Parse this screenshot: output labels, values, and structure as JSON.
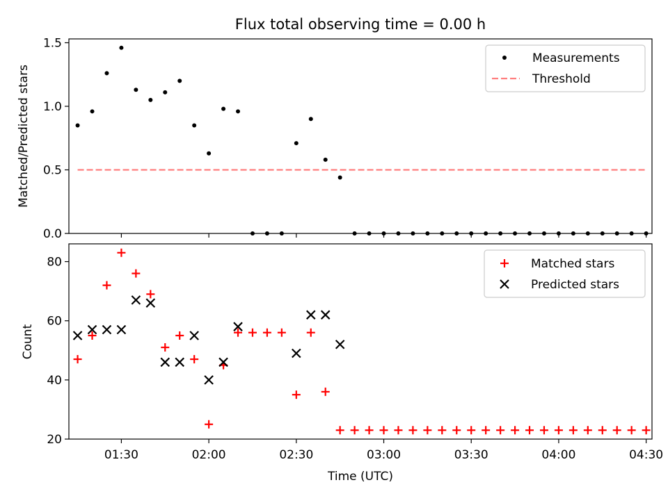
{
  "chart_data": [
    {
      "type": "scatter",
      "title": "Flux total observing time = 0.00 h",
      "xlabel": "",
      "ylabel": "Matched/Predicted stars",
      "xlim": [
        "01:12",
        "04:32"
      ],
      "ylim": [
        0,
        1.53
      ],
      "yticks": [
        "0.0",
        "0.5",
        "1.0",
        "1.5"
      ],
      "legend_position": "upper right",
      "series": [
        {
          "name": "Measurements",
          "marker": "dot",
          "color": "#000000",
          "x": [
            "01:15",
            "01:20",
            "01:25",
            "01:30",
            "01:35",
            "01:40",
            "01:45",
            "01:50",
            "01:55",
            "02:00",
            "02:05",
            "02:10",
            "02:15",
            "02:20",
            "02:25",
            "02:30",
            "02:35",
            "02:40",
            "02:45",
            "02:50",
            "02:55",
            "03:00",
            "03:05",
            "03:10",
            "03:15",
            "03:20",
            "03:25",
            "03:30",
            "03:35",
            "03:40",
            "03:45",
            "03:50",
            "03:55",
            "04:00",
            "04:05",
            "04:10",
            "04:15",
            "04:20",
            "04:25",
            "04:30"
          ],
          "y": [
            0.85,
            0.96,
            1.26,
            1.46,
            1.13,
            1.05,
            1.11,
            1.2,
            0.85,
            0.63,
            0.98,
            0.96,
            0,
            0,
            0,
            0.71,
            0.9,
            0.58,
            0.44,
            0,
            0,
            0,
            0,
            0,
            0,
            0,
            0,
            0,
            0,
            0,
            0,
            0,
            0,
            0,
            0,
            0,
            0,
            0,
            0,
            0
          ]
        },
        {
          "name": "Threshold",
          "style": "dashed",
          "color": "#ff7f7f",
          "x": [
            "01:15",
            "04:30"
          ],
          "y": [
            0.5,
            0.5
          ]
        }
      ]
    },
    {
      "type": "scatter",
      "title": "",
      "xlabel": "Time (UTC)",
      "ylabel": "Count",
      "xlim": [
        "01:12",
        "04:32"
      ],
      "ylim": [
        20,
        86
      ],
      "yticks": [
        "20",
        "40",
        "60",
        "80"
      ],
      "xticks": [
        "01:30",
        "02:00",
        "02:30",
        "03:00",
        "03:30",
        "04:00",
        "04:30"
      ],
      "legend_position": "upper right",
      "series": [
        {
          "name": "Matched stars",
          "marker": "plus",
          "color": "#ff0000",
          "x": [
            "01:15",
            "01:20",
            "01:25",
            "01:30",
            "01:35",
            "01:40",
            "01:45",
            "01:50",
            "01:55",
            "02:00",
            "02:05",
            "02:10",
            "02:15",
            "02:20",
            "02:25",
            "02:30",
            "02:35",
            "02:40",
            "02:45",
            "02:50",
            "02:55",
            "03:00",
            "03:05",
            "03:10",
            "03:15",
            "03:20",
            "03:25",
            "03:30",
            "03:35",
            "03:40",
            "03:45",
            "03:50",
            "03:55",
            "04:00",
            "04:05",
            "04:10",
            "04:15",
            "04:20",
            "04:25",
            "04:30"
          ],
          "y": [
            47,
            55,
            72,
            83,
            76,
            69,
            51,
            55,
            47,
            25,
            45,
            56,
            56,
            56,
            56,
            35,
            56,
            36,
            23,
            23,
            23,
            23,
            23,
            23,
            23,
            23,
            23,
            23,
            23,
            23,
            23,
            23,
            23,
            23,
            23,
            23,
            23,
            23,
            23,
            23
          ]
        },
        {
          "name": "Predicted stars",
          "marker": "x",
          "color": "#000000",
          "x": [
            "01:15",
            "01:20",
            "01:25",
            "01:30",
            "01:35",
            "01:40",
            "01:45",
            "01:50",
            "01:55",
            "02:00",
            "02:05",
            "02:10",
            "02:30",
            "02:35",
            "02:40",
            "02:45"
          ],
          "y": [
            55,
            57,
            57,
            57,
            67,
            66,
            46,
            46,
            55,
            40,
            46,
            58,
            49,
            62,
            62,
            52
          ]
        }
      ]
    }
  ]
}
